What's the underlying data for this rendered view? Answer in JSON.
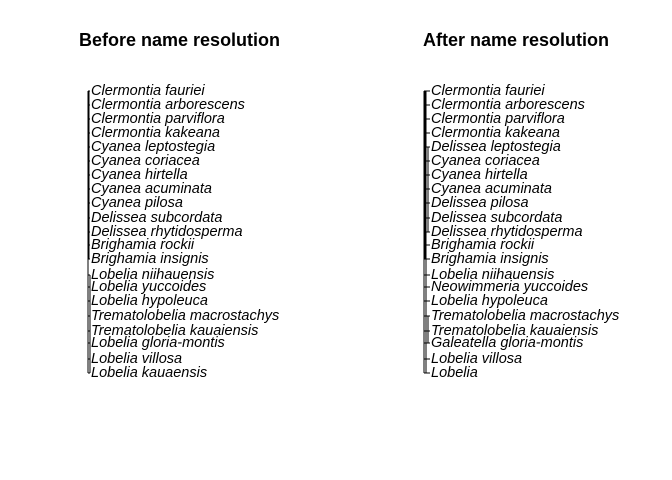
{
  "panels": [
    {
      "title": "Before name resolution",
      "tips": [
        "Clermontia fauriei",
        "Clermontia arborescens",
        "Clermontia parviflora",
        "Clermontia kakeana",
        "Cyanea leptostegia",
        "Cyanea coriacea",
        "Cyanea hirtella",
        "Cyanea acuminata",
        "Cyanea pilosa",
        "Delissea subcordata",
        "Delissea rhytidosperma",
        "Brighamia rockii",
        "Brighamia insignis",
        "Lobelia niihauensis",
        "Lobelia yuccoides",
        "Lobelia hypoleuca",
        "Trematolobelia macrostachys",
        "Trematolobelia kauaiensis",
        "Lobelia gloria-montis",
        "Lobelia villosa",
        "Lobelia kauaensis"
      ]
    },
    {
      "title": "After name resolution",
      "tips": [
        "Clermontia fauriei",
        "Clermontia arborescens",
        "Clermontia parviflora",
        "Clermontia kakeana",
        "Delissea leptostegia",
        "Cyanea coriacea",
        "Cyanea hirtella",
        "Cyanea acuminata",
        "Delissea pilosa",
        "Delissea subcordata",
        "Delissea rhytidosperma",
        "Brighamia rockii",
        "Brighamia insignis",
        "Lobelia niihauensis",
        "Neowimmeria yuccoides",
        "Lobelia hypoleuca",
        "Trematolobelia macrostachys",
        "Trematolobelia kauaiensis",
        "Galeatella gloria-montis",
        "Lobelia villosa",
        "Lobelia"
      ]
    }
  ]
}
